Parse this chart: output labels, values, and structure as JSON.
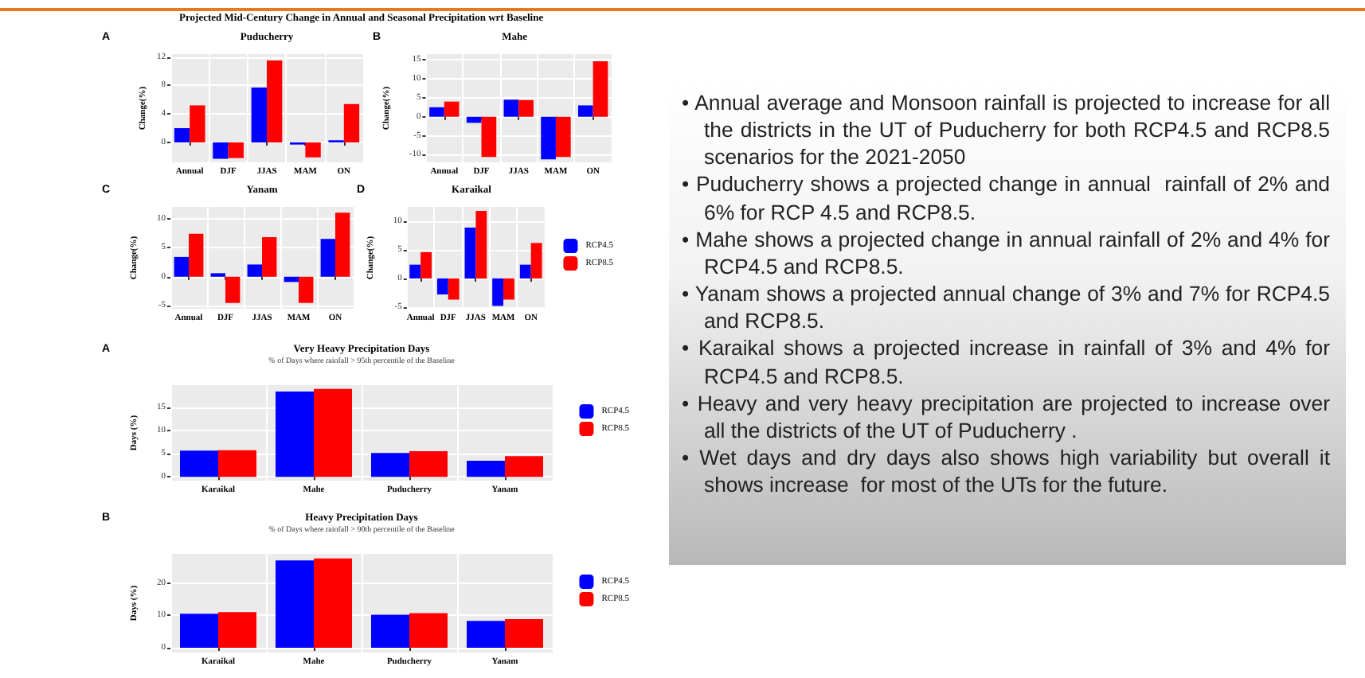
{
  "chart_data": [
    {
      "type": "bar",
      "title": "Puducherry",
      "ylabel": "Change(%)",
      "annotations": [
        "A",
        "Projected Mid-Century Change in Annual and Seasonal Precipitation wrt Baseline"
      ],
      "categories": [
        "Annual",
        "DJF",
        "JJAS",
        "MAM",
        "ON"
      ],
      "ylim": [
        -2.8,
        12.4
      ],
      "yticks": [
        0,
        4,
        8,
        12
      ],
      "grid": true,
      "series": [
        {
          "color": "#0000ff",
          "values": [
            2,
            -2.3,
            7.7,
            -0.3,
            0.3
          ]
        },
        {
          "color": "#ff0000",
          "values": [
            5.2,
            -2.2,
            11.5,
            -2.1,
            5.4
          ]
        }
      ]
    },
    {
      "type": "bar",
      "title": "Mahe",
      "ylabel": "Change(%)",
      "annotations": [
        "B"
      ],
      "categories": [
        "Annual",
        "DJF",
        "JJAS",
        "MAM",
        "ON"
      ],
      "ylim": [
        -12,
        16.5
      ],
      "yticks": [
        -10,
        -5,
        0,
        5,
        10,
        15
      ],
      "grid": true,
      "series": [
        {
          "color": "#0000ff",
          "values": [
            2.5,
            -1.6,
            4.5,
            -11.2,
            3
          ]
        },
        {
          "color": "#ff0000",
          "values": [
            4,
            -10.6,
            4.4,
            -10.6,
            14.6
          ]
        }
      ]
    },
    {
      "type": "bar",
      "title": "Yanam",
      "ylabel": "Change(%)",
      "annotations": [
        "C"
      ],
      "categories": [
        "Annual",
        "DJF",
        "JJAS",
        "MAM",
        "ON"
      ],
      "ylim": [
        -5.5,
        12
      ],
      "yticks": [
        -5,
        0,
        5,
        10
      ],
      "grid": true,
      "series": [
        {
          "color": "#0000ff",
          "values": [
            3.4,
            0.6,
            2.1,
            -0.9,
            6.5
          ]
        },
        {
          "color": "#ff0000",
          "values": [
            7.4,
            -4.5,
            6.8,
            -4.5,
            11
          ]
        }
      ]
    },
    {
      "type": "bar",
      "title": "Karaikal",
      "ylabel": "Change(%)",
      "annotations": [
        "D"
      ],
      "categories": [
        "Annual",
        "DJF",
        "JJAS",
        "MAM",
        "ON"
      ],
      "ylim": [
        -5.3,
        12.5
      ],
      "yticks": [
        -5,
        0,
        5,
        10
      ],
      "grid": true,
      "legend": "right",
      "series": [
        {
          "name": "RCP4.5",
          "color": "#0000ff",
          "values": [
            2.4,
            -2.8,
            8.9,
            -4.8,
            2.4
          ]
        },
        {
          "name": "RCP8.5",
          "color": "#ff0000",
          "values": [
            4.6,
            -3.7,
            11.8,
            -3.7,
            6.2
          ]
        }
      ]
    },
    {
      "type": "bar",
      "title": "Very Heavy Precipitation Days",
      "subtitle": "% of Days where rainfall > 95th percentile of the Baseline",
      "ylabel": "Days (%)",
      "annotations": [
        "A"
      ],
      "categories": [
        "Karaikal",
        "Mahe",
        "Puducherry",
        "Yanam"
      ],
      "ylim": [
        -0.8,
        19.9
      ],
      "yticks": [
        0,
        5,
        10,
        15
      ],
      "grid": true,
      "legend": "right",
      "series": [
        {
          "name": "RCP4.5",
          "color": "#0000ff",
          "values": [
            5.7,
            18.5,
            5.2,
            3.5
          ]
        },
        {
          "name": "RCP8.5",
          "color": "#ff0000",
          "values": [
            5.8,
            19.1,
            5.6,
            4.5
          ]
        }
      ]
    },
    {
      "type": "bar",
      "title": "Heavy Precipitation Days",
      "subtitle": "% of Days where rainfall > 90th percentile of the Baseline",
      "ylabel": "Days (%)",
      "annotations": [
        "B"
      ],
      "categories": [
        "Karaikal",
        "Mahe",
        "Puducherry",
        "Yanam"
      ],
      "ylim": [
        -1.5,
        29
      ],
      "yticks": [
        0,
        10,
        20
      ],
      "grid": true,
      "legend": "right",
      "series": [
        {
          "name": "RCP4.5",
          "color": "#0000ff",
          "values": [
            10.5,
            27,
            10.2,
            8.3
          ]
        },
        {
          "name": "RCP8.5",
          "color": "#ff0000",
          "values": [
            11,
            27.6,
            10.7,
            8.8
          ]
        }
      ]
    },
    {
      "type": "other",
      "annotations": [
        "• Annual average and Monsoon rainfall is projected to increase for all the districts in the UT of Puducherry for both RCP4.5 and RCP8.5 scenarios for the 2021-2050",
        "• Puducherry shows a projected change in annual  rainfall of 2% and 6% for RCP 4.5 and RCP8.5.",
        "• Mahe shows a projected change in annual rainfall of 2% and 4% for RCP4.5 and RCP8.5.",
        "• Yanam shows a projected annual change of 3% and 7% for RCP4.5 and RCP8.5.",
        "• Karaikal shows a projected increase in rainfall of 3% and 4% for RCP4.5 and RCP8.5.",
        "• Heavy and very heavy precipitation are projected to increase over all the districts of the UT of Puducherry .",
        "• Wet days and dry days also shows high variability but overall it shows increase  for most of the UTs for the future."
      ]
    }
  ]
}
